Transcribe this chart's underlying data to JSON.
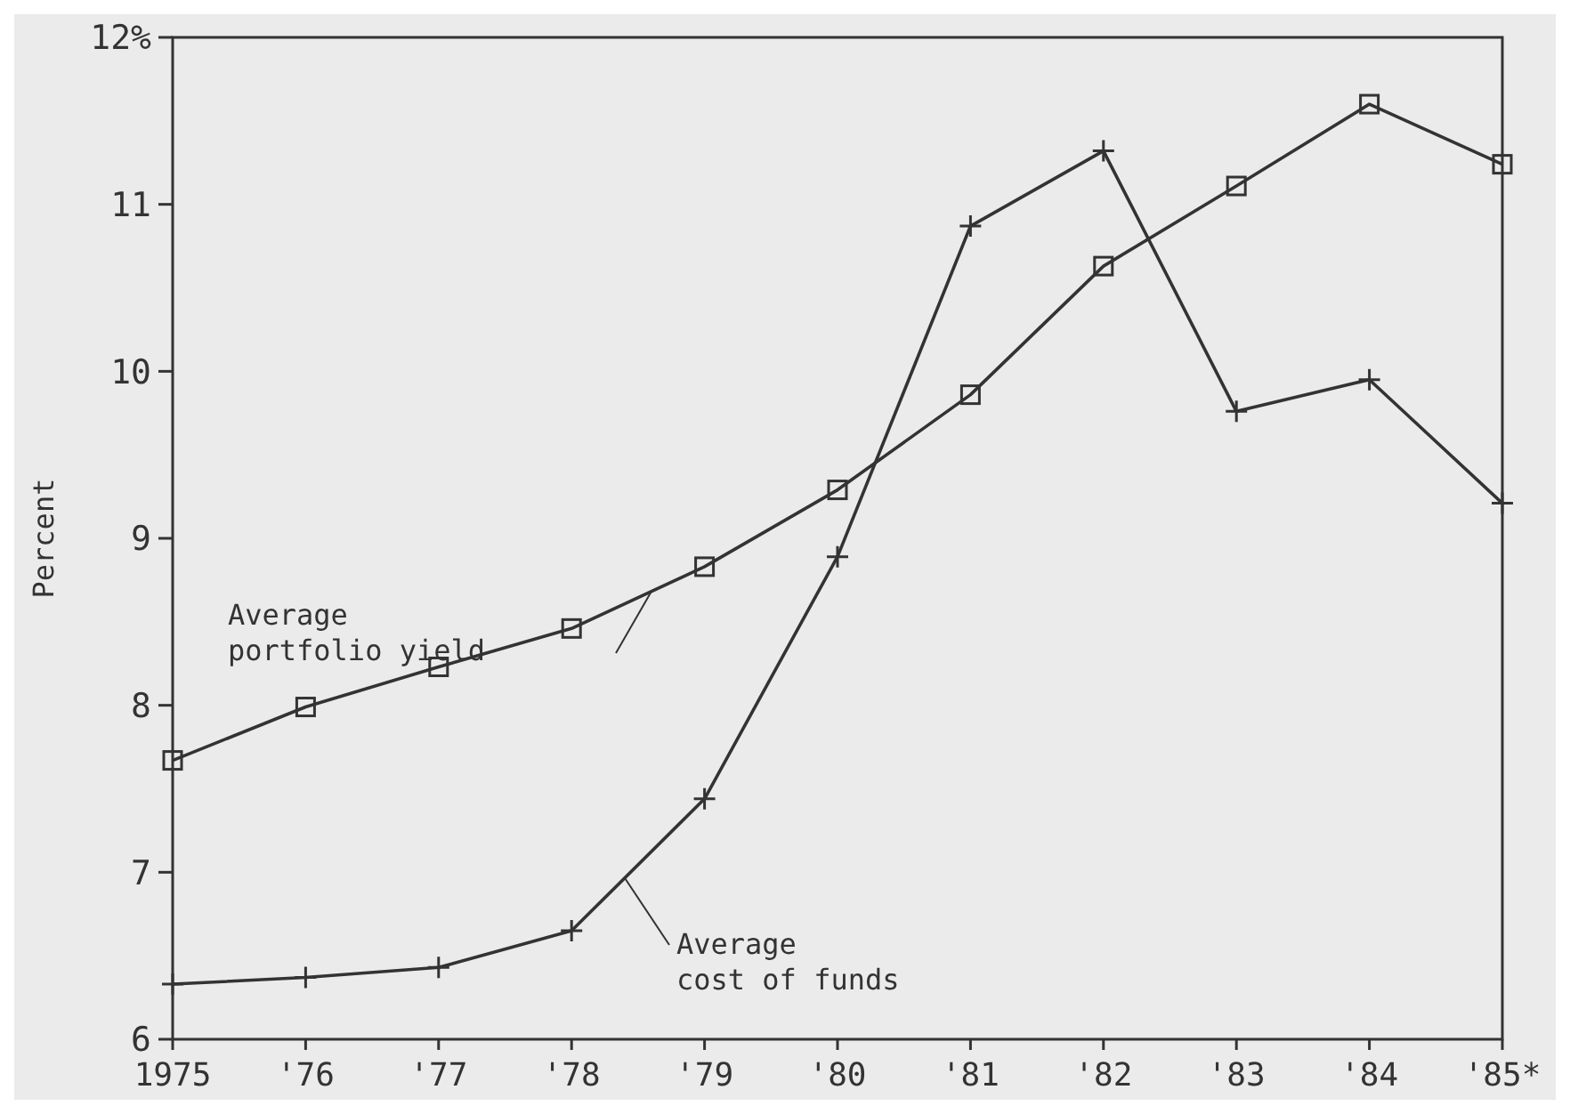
{
  "chart_data": {
    "type": "line",
    "ylabel": "Percent",
    "categories": [
      "1975",
      "'76",
      "'77",
      "'78",
      "'79",
      "'80",
      "'81",
      "'82",
      "'83",
      "'84",
      "'85*"
    ],
    "ylim": [
      6,
      12
    ],
    "yticks": [
      6,
      7,
      8,
      9,
      10,
      11,
      {
        "value": 12,
        "label": "12%"
      }
    ],
    "grid": false,
    "series": [
      {
        "name": "Average portfolio yield",
        "color": "#333333",
        "marker": "square",
        "values": [
          7.67,
          7.99,
          8.23,
          8.46,
          8.83,
          9.29,
          9.86,
          10.63,
          11.11,
          11.6,
          11.24
        ]
      },
      {
        "name": "Average cost of funds",
        "color": "#333333",
        "marker": "cross",
        "values": [
          6.33,
          6.37,
          6.43,
          6.65,
          7.44,
          8.89,
          10.87,
          11.32,
          9.76,
          9.95,
          9.21
        ]
      }
    ]
  }
}
